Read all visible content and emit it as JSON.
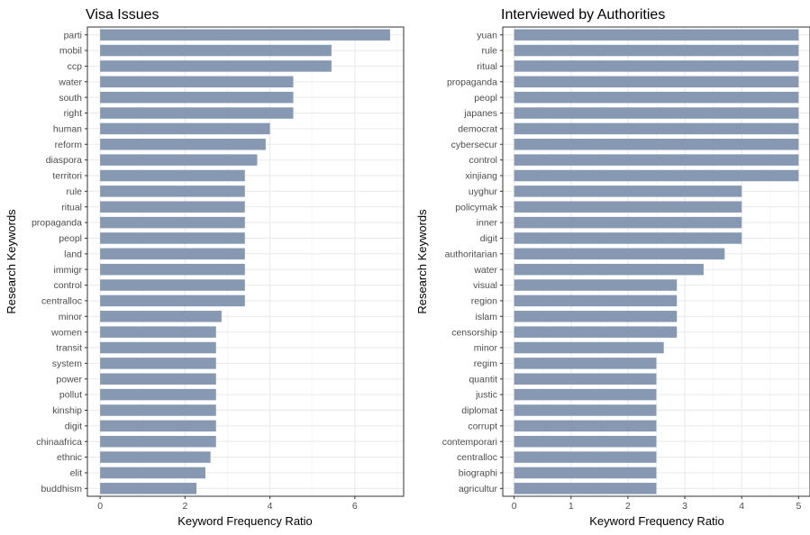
{
  "chart_data": [
    {
      "type": "bar",
      "orientation": "horizontal",
      "title": "Visa Issues",
      "xlabel": "Keyword Frequency Ratio",
      "ylabel": "Research Keywords",
      "xlim": [
        -0.3,
        7.15
      ],
      "xticks": [
        0,
        2,
        4,
        6
      ],
      "grid": true,
      "bar_color": "#8596b1",
      "categories": [
        "parti",
        "mobil",
        "ccp",
        "water",
        "south",
        "right",
        "human",
        "reform",
        "diaspora",
        "territori",
        "rule",
        "ritual",
        "propaganda",
        "peopl",
        "land",
        "immigr",
        "control",
        "centralloc",
        "minor",
        "women",
        "transit",
        "system",
        "power",
        "pollut",
        "kinship",
        "digit",
        "chinaafrica",
        "ethnic",
        "elit",
        "buddhism"
      ],
      "values": [
        6.83,
        5.45,
        5.45,
        4.55,
        4.55,
        4.55,
        4.0,
        3.9,
        3.7,
        3.41,
        3.41,
        3.41,
        3.41,
        3.41,
        3.41,
        3.41,
        3.41,
        3.41,
        2.86,
        2.73,
        2.73,
        2.73,
        2.73,
        2.73,
        2.73,
        2.73,
        2.73,
        2.6,
        2.48,
        2.27
      ]
    },
    {
      "type": "bar",
      "orientation": "horizontal",
      "title": "Interviewed by Authorities",
      "xlabel": "Keyword Frequency Ratio",
      "ylabel": "Research Keywords",
      "xlim": [
        -0.2,
        5.2
      ],
      "xticks": [
        0,
        1,
        2,
        3,
        4,
        5
      ],
      "grid": true,
      "bar_color": "#8596b1",
      "categories": [
        "yuan",
        "rule",
        "ritual",
        "propaganda",
        "peopl",
        "japanes",
        "democrat",
        "cybersecur",
        "control",
        "xinjiang",
        "uyghur",
        "policymak",
        "inner",
        "digit",
        "authoritarian",
        "water",
        "visual",
        "region",
        "islam",
        "censorship",
        "minor",
        "regim",
        "quantit",
        "justic",
        "diplomat",
        "corrupt",
        "contemporari",
        "centralloc",
        "biographi",
        "agricultur"
      ],
      "values": [
        5,
        5,
        5,
        5,
        5,
        5,
        5,
        5,
        5,
        5,
        4,
        4,
        4,
        4,
        3.7,
        3.33,
        2.86,
        2.86,
        2.86,
        2.86,
        2.63,
        2.5,
        2.5,
        2.5,
        2.5,
        2.5,
        2.5,
        2.5,
        2.5,
        2.5
      ]
    }
  ]
}
